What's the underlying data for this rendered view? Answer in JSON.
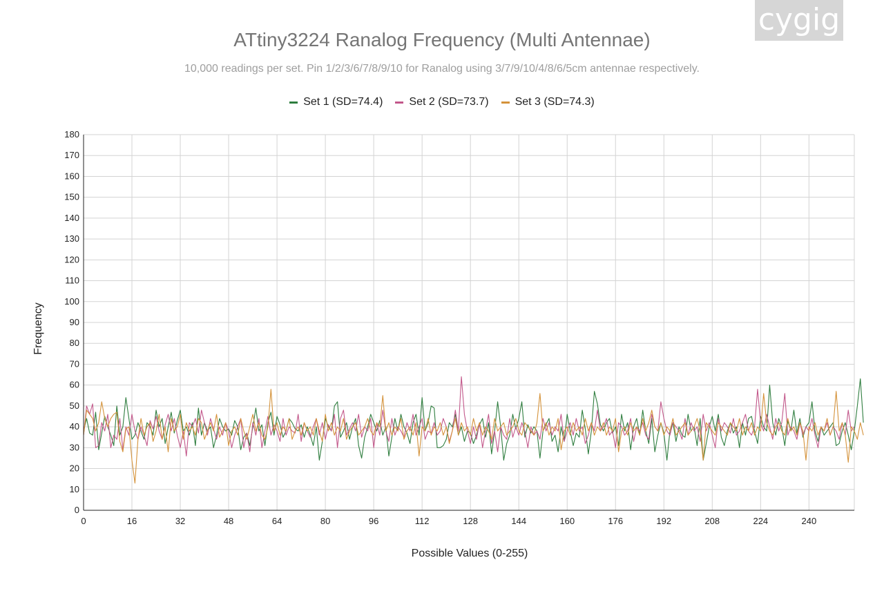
{
  "watermark": "cygig",
  "chart_data": {
    "type": "line",
    "title": "ATtiny3224  Ranalog Frequency (Multi Antennae)",
    "subtitle": "10,000 readings per set. Pin 1/2/3/6/7/8/9/10 for Ranalog using 3/7/9/10/4/8/6/5cm antennae respectively.",
    "xlabel": "Possible Values (0-255)",
    "ylabel": "Frequency",
    "xlim": [
      0,
      255
    ],
    "ylim": [
      0,
      180
    ],
    "xticks": [
      0,
      16,
      32,
      48,
      64,
      80,
      96,
      112,
      128,
      144,
      160,
      176,
      192,
      208,
      224,
      240
    ],
    "yticks": [
      0,
      10,
      20,
      30,
      40,
      50,
      60,
      70,
      80,
      90,
      100,
      110,
      120,
      130,
      140,
      150,
      160,
      170,
      180
    ],
    "grid": true,
    "legend_position": "top",
    "x": "integers 0..255",
    "series": [
      {
        "name": "Set 1 (SD=74.4)",
        "color": "#2e7d3e",
        "values": [
          38,
          44,
          37,
          36,
          47,
          29,
          37,
          45,
          40,
          36,
          31,
          50,
          36,
          40,
          54,
          44,
          34,
          36,
          42,
          38,
          34,
          42,
          40,
          36,
          48,
          40,
          44,
          32,
          40,
          47,
          37,
          43,
          48,
          38,
          40,
          36,
          42,
          31,
          49,
          36,
          42,
          38,
          40,
          30,
          36,
          44,
          40,
          38,
          39,
          36,
          43,
          40,
          29,
          35,
          37,
          31,
          40,
          49,
          38,
          41,
          31,
          42,
          47,
          36,
          45,
          41,
          35,
          38,
          44,
          42,
          39,
          38,
          41,
          35,
          40,
          36,
          31,
          40,
          24,
          33,
          44,
          40,
          38,
          50,
          52,
          35,
          38,
          42,
          34,
          40,
          44,
          31,
          25,
          35,
          40,
          46,
          42,
          38,
          43,
          36,
          40,
          26,
          35,
          44,
          38,
          46,
          40,
          37,
          32,
          42,
          46,
          36,
          54,
          38,
          42,
          50,
          49,
          30,
          30,
          31,
          34,
          42,
          40,
          46,
          36,
          40,
          33,
          38,
          37,
          32,
          36,
          41,
          44,
          35,
          42,
          27,
          38,
          52,
          40,
          24,
          32,
          36,
          46,
          39,
          44,
          52,
          35,
          41,
          37,
          40,
          38,
          25,
          38,
          41,
          44,
          33,
          36,
          28,
          40,
          33,
          46,
          38,
          31,
          37,
          35,
          48,
          39,
          27,
          38,
          57,
          51,
          41,
          38,
          42,
          44,
          37,
          40,
          31,
          46,
          38,
          42,
          29,
          40,
          44,
          36,
          48,
          38,
          32,
          44,
          28,
          36,
          42,
          37,
          24,
          38,
          42,
          33,
          40,
          36,
          35,
          46,
          38,
          40,
          31,
          44,
          24,
          32,
          40,
          45,
          38,
          46,
          35,
          31,
          38,
          42,
          37,
          40,
          30,
          42,
          36,
          44,
          45,
          38,
          32,
          45,
          40,
          38,
          60,
          42,
          36,
          44,
          40,
          31,
          43,
          38,
          48,
          37,
          44,
          35,
          40,
          42,
          52,
          38,
          33,
          40,
          36,
          38,
          40,
          42,
          31,
          32,
          38,
          42,
          36,
          29,
          38,
          50,
          63,
          42
        ]
      },
      {
        "name": "Set 2 (SD=73.7)",
        "color": "#c2578a",
        "values": [
          36,
          50,
          46,
          51,
          30,
          31,
          42,
          38,
          46,
          30,
          36,
          34,
          44,
          29,
          40,
          36,
          46,
          38,
          34,
          40,
          36,
          31,
          43,
          39,
          45,
          38,
          34,
          41,
          46,
          38,
          44,
          36,
          30,
          38,
          26,
          42,
          40,
          44,
          37,
          48,
          42,
          36,
          44,
          39,
          34,
          40,
          36,
          42,
          38,
          30,
          36,
          40,
          44,
          30,
          37,
          28,
          42,
          36,
          44,
          30,
          38,
          45,
          36,
          41,
          38,
          33,
          44,
          36,
          40,
          38,
          37,
          46,
          33,
          42,
          38,
          35,
          40,
          44,
          36,
          42,
          34,
          41,
          38,
          46,
          30,
          44,
          48,
          36,
          39,
          42,
          38,
          46,
          35,
          40,
          38,
          44,
          30,
          42,
          36,
          48,
          38,
          33,
          44,
          36,
          40,
          38,
          35,
          42,
          38,
          46,
          36,
          40,
          44,
          34,
          38,
          37,
          42,
          36,
          38,
          44,
          40,
          33,
          38,
          48,
          38,
          64,
          46,
          38,
          32,
          40,
          34,
          42,
          30,
          38,
          46,
          32,
          38,
          28,
          40,
          36,
          34,
          44,
          35,
          40,
          36,
          42,
          38,
          30,
          40,
          36,
          38,
          34,
          44,
          38,
          42,
          36,
          40,
          38,
          46,
          33,
          38,
          42,
          36,
          44,
          38,
          40,
          32,
          36,
          42,
          38,
          48,
          38,
          40,
          44,
          36,
          38,
          30,
          42,
          40,
          36,
          38,
          44,
          33,
          40,
          38,
          42,
          36,
          34,
          46,
          40,
          38,
          52,
          44,
          38,
          36,
          42,
          40,
          38,
          34,
          44,
          36,
          42,
          38,
          40,
          33,
          46,
          38,
          42,
          36,
          30,
          44,
          38,
          42,
          40,
          37,
          44,
          36,
          38,
          42,
          46,
          38,
          36,
          40,
          58,
          42,
          38,
          46,
          40,
          34,
          44,
          38,
          42,
          56,
          36,
          40,
          38,
          34,
          42,
          36,
          40,
          38,
          44,
          36,
          30,
          40,
          38,
          42,
          36,
          40,
          38,
          34,
          42,
          36,
          48,
          38,
          40
        ]
      },
      {
        "name": "Set 3 (SD=74.3)",
        "color": "#d4923a",
        "values": [
          36,
          48,
          46,
          44,
          38,
          42,
          52,
          44,
          40,
          44,
          46,
          47,
          33,
          28,
          39,
          40,
          24,
          13,
          34,
          44,
          36,
          40,
          42,
          33,
          38,
          46,
          34,
          40,
          28,
          44,
          38,
          40,
          46,
          34,
          42,
          38,
          40,
          36,
          44,
          42,
          34,
          38,
          42,
          38,
          46,
          35,
          38,
          42,
          31,
          38,
          40,
          36,
          44,
          38,
          34,
          40,
          46,
          38,
          42,
          36,
          34,
          40,
          58,
          38,
          42,
          36,
          40,
          38,
          44,
          34,
          38,
          40,
          36,
          42,
          38,
          40,
          36,
          44,
          38,
          33,
          46,
          38,
          42,
          36,
          40,
          38,
          44,
          34,
          38,
          40,
          42,
          36,
          38,
          40,
          44,
          38,
          36,
          42,
          40,
          55,
          38,
          42,
          36,
          40,
          38,
          44,
          34,
          38,
          40,
          36,
          42,
          26,
          40,
          38,
          44,
          36,
          40,
          38,
          42,
          36,
          40,
          32,
          38,
          44,
          36,
          42,
          38,
          40,
          36,
          44,
          38,
          42,
          36,
          40,
          38,
          34,
          44,
          38,
          40,
          42,
          36,
          38,
          40,
          44,
          38,
          36,
          42,
          40,
          38,
          36,
          42,
          56,
          38,
          42,
          36,
          40,
          38,
          44,
          29,
          38,
          40,
          36,
          42,
          38,
          40,
          36,
          44,
          38,
          42,
          36,
          40,
          38,
          42,
          36,
          40,
          38,
          44,
          28,
          38,
          40,
          36,
          42,
          38,
          40,
          36,
          44,
          38,
          42,
          48,
          40,
          38,
          42,
          36,
          40,
          38,
          44,
          36,
          38,
          40,
          42,
          36,
          38,
          40,
          44,
          38,
          24,
          42,
          40,
          38,
          36,
          42,
          40,
          38,
          36,
          42,
          40,
          38,
          44,
          36,
          40,
          38,
          42,
          36,
          40,
          38,
          56,
          42,
          38,
          36,
          40,
          42,
          38,
          36,
          44,
          38,
          40,
          36,
          42,
          38,
          24,
          40,
          38,
          42,
          36,
          40,
          38,
          44,
          36,
          40,
          57,
          38,
          42,
          36,
          23,
          40,
          38,
          34,
          42,
          36
        ]
      }
    ]
  }
}
